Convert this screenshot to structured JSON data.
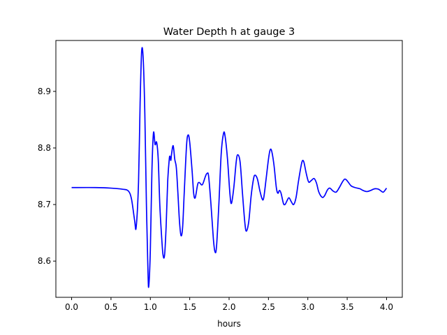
{
  "chart_data": {
    "type": "line",
    "title": "Water Depth h at gauge 3",
    "xlabel": "hours",
    "ylabel": "",
    "xlim": [
      -0.2,
      4.2
    ],
    "ylim": [
      8.536,
      8.99
    ],
    "grid": false,
    "x_ticks": [
      0.0,
      0.5,
      1.0,
      1.5,
      2.0,
      2.5,
      3.0,
      3.5,
      4.0
    ],
    "x_tick_labels": [
      "0.0",
      "0.5",
      "1.0",
      "1.5",
      "2.0",
      "2.5",
      "3.0",
      "3.5",
      "4.0"
    ],
    "y_ticks": [
      8.6,
      8.7,
      8.8,
      8.9
    ],
    "y_tick_labels": [
      "8.6",
      "8.7",
      "8.8",
      "8.9"
    ],
    "series": [
      {
        "name": "",
        "color": "#0000ff",
        "points": [
          [
            0.0,
            8.73
          ],
          [
            0.3,
            8.73
          ],
          [
            0.5,
            8.729
          ],
          [
            0.65,
            8.727
          ],
          [
            0.72,
            8.724
          ],
          [
            0.76,
            8.71
          ],
          [
            0.8,
            8.672
          ],
          [
            0.82,
            8.66
          ],
          [
            0.85,
            8.74
          ],
          [
            0.87,
            8.88
          ],
          [
            0.89,
            8.972
          ],
          [
            0.91,
            8.955
          ],
          [
            0.93,
            8.86
          ],
          [
            0.95,
            8.7
          ],
          [
            0.97,
            8.58
          ],
          [
            0.98,
            8.556
          ],
          [
            1.0,
            8.62
          ],
          [
            1.02,
            8.76
          ],
          [
            1.04,
            8.827
          ],
          [
            1.06,
            8.806
          ],
          [
            1.08,
            8.81
          ],
          [
            1.1,
            8.78
          ],
          [
            1.12,
            8.7
          ],
          [
            1.14,
            8.65
          ],
          [
            1.16,
            8.612
          ],
          [
            1.18,
            8.61
          ],
          [
            1.2,
            8.66
          ],
          [
            1.22,
            8.74
          ],
          [
            1.24,
            8.78
          ],
          [
            1.25,
            8.785
          ],
          [
            1.26,
            8.778
          ],
          [
            1.27,
            8.79
          ],
          [
            1.29,
            8.804
          ],
          [
            1.31,
            8.78
          ],
          [
            1.33,
            8.765
          ],
          [
            1.35,
            8.72
          ],
          [
            1.37,
            8.67
          ],
          [
            1.39,
            8.645
          ],
          [
            1.41,
            8.66
          ],
          [
            1.43,
            8.72
          ],
          [
            1.46,
            8.805
          ],
          [
            1.48,
            8.823
          ],
          [
            1.5,
            8.81
          ],
          [
            1.53,
            8.76
          ],
          [
            1.55,
            8.72
          ],
          [
            1.57,
            8.712
          ],
          [
            1.6,
            8.735
          ],
          [
            1.62,
            8.739
          ],
          [
            1.66,
            8.735
          ],
          [
            1.7,
            8.75
          ],
          [
            1.72,
            8.755
          ],
          [
            1.74,
            8.75
          ],
          [
            1.77,
            8.7
          ],
          [
            1.8,
            8.64
          ],
          [
            1.82,
            8.617
          ],
          [
            1.84,
            8.625
          ],
          [
            1.87,
            8.7
          ],
          [
            1.9,
            8.79
          ],
          [
            1.93,
            8.826
          ],
          [
            1.95,
            8.82
          ],
          [
            1.98,
            8.78
          ],
          [
            2.01,
            8.72
          ],
          [
            2.03,
            8.702
          ],
          [
            2.06,
            8.73
          ],
          [
            2.09,
            8.775
          ],
          [
            2.11,
            8.788
          ],
          [
            2.14,
            8.775
          ],
          [
            2.17,
            8.72
          ],
          [
            2.2,
            8.668
          ],
          [
            2.22,
            8.653
          ],
          [
            2.25,
            8.67
          ],
          [
            2.28,
            8.715
          ],
          [
            2.31,
            8.745
          ],
          [
            2.33,
            8.752
          ],
          [
            2.36,
            8.745
          ],
          [
            2.39,
            8.725
          ],
          [
            2.42,
            8.71
          ],
          [
            2.44,
            8.712
          ],
          [
            2.47,
            8.745
          ],
          [
            2.5,
            8.78
          ],
          [
            2.52,
            8.796
          ],
          [
            2.54,
            8.795
          ],
          [
            2.57,
            8.77
          ],
          [
            2.6,
            8.73
          ],
          [
            2.62,
            8.72
          ],
          [
            2.64,
            8.725
          ],
          [
            2.66,
            8.72
          ],
          [
            2.69,
            8.702
          ],
          [
            2.71,
            8.7
          ],
          [
            2.73,
            8.705
          ],
          [
            2.76,
            8.712
          ],
          [
            2.79,
            8.705
          ],
          [
            2.82,
            8.7
          ],
          [
            2.85,
            8.712
          ],
          [
            2.88,
            8.74
          ],
          [
            2.91,
            8.765
          ],
          [
            2.93,
            8.777
          ],
          [
            2.95,
            8.775
          ],
          [
            2.98,
            8.755
          ],
          [
            3.01,
            8.74
          ],
          [
            3.04,
            8.742
          ],
          [
            3.08,
            8.746
          ],
          [
            3.11,
            8.738
          ],
          [
            3.14,
            8.722
          ],
          [
            3.18,
            8.713
          ],
          [
            3.21,
            8.715
          ],
          [
            3.25,
            8.726
          ],
          [
            3.28,
            8.729
          ],
          [
            3.32,
            8.724
          ],
          [
            3.36,
            8.722
          ],
          [
            3.4,
            8.73
          ],
          [
            3.44,
            8.74
          ],
          [
            3.47,
            8.745
          ],
          [
            3.5,
            8.742
          ],
          [
            3.55,
            8.733
          ],
          [
            3.6,
            8.73
          ],
          [
            3.66,
            8.728
          ],
          [
            3.7,
            8.725
          ],
          [
            3.75,
            8.723
          ],
          [
            3.8,
            8.725
          ],
          [
            3.83,
            8.727
          ],
          [
            3.86,
            8.728
          ],
          [
            3.9,
            8.727
          ],
          [
            3.93,
            8.724
          ],
          [
            3.96,
            8.722
          ],
          [
            4.0,
            8.729
          ]
        ]
      }
    ]
  }
}
